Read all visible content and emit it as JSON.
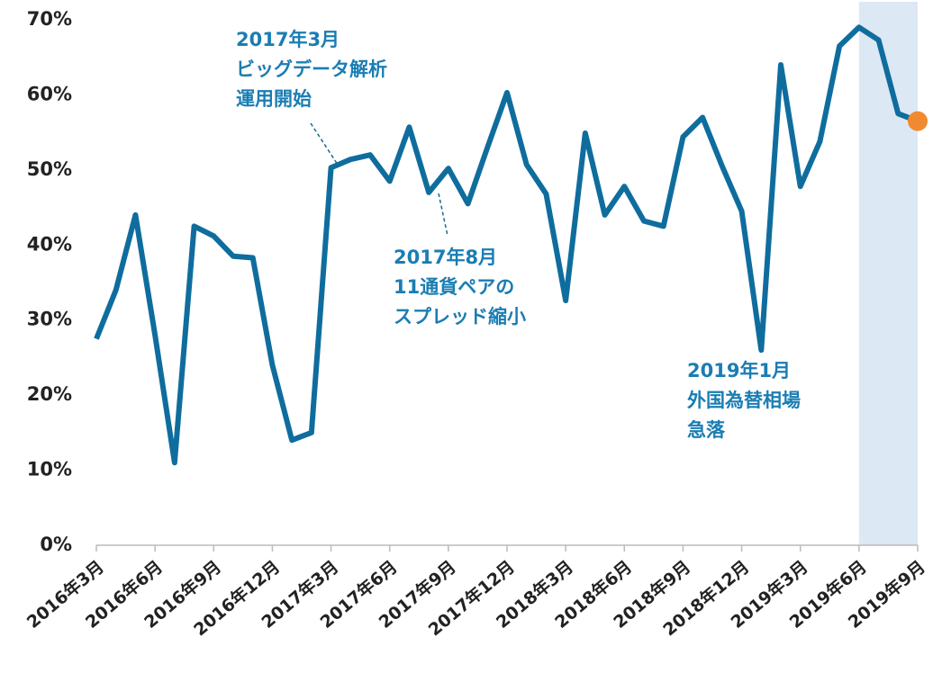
{
  "chart_data": {
    "type": "line",
    "categories": [
      "2016年3月",
      null,
      null,
      "2016年6月",
      null,
      null,
      "2016年9月",
      null,
      null,
      "2016年12月",
      null,
      null,
      "2017年3月",
      null,
      null,
      "2017年6月",
      null,
      null,
      "2017年9月",
      null,
      null,
      "2017年12月",
      null,
      null,
      "2018年3月",
      null,
      null,
      "2018年6月",
      null,
      null,
      "2018年9月",
      null,
      null,
      "2018年12月",
      null,
      null,
      "2019年3月",
      null,
      null,
      "2019年6月",
      null,
      null,
      "2019年9月"
    ],
    "series": [
      {
        "color": "#0f6d9e",
        "values": [
          27.5,
          34,
          44,
          28,
          11,
          42.5,
          41.2,
          38.5,
          38.3,
          24,
          14,
          15,
          50.3,
          51.4,
          52,
          48.5,
          55.7,
          47,
          50.2,
          45.5,
          53,
          60.3,
          50.7,
          46.8,
          32.6,
          54.9,
          44,
          47.8,
          43.2,
          42.5,
          54.4,
          57,
          50.5,
          44.5,
          26,
          64,
          47.8,
          53.8,
          66.5,
          69,
          67.3,
          57.5,
          56.5
        ]
      }
    ],
    "last_point_color": "#f08a30",
    "highlight": {
      "from": "2019年6月",
      "to": "2019年9月",
      "color": "#dde8f5"
    },
    "ylim": [
      0,
      70
    ],
    "yticks": [
      {
        "value": 0,
        "label": "0%"
      },
      {
        "value": 10,
        "label": "10%"
      },
      {
        "value": 20,
        "label": "20%"
      },
      {
        "value": 30,
        "label": "30%"
      },
      {
        "value": 40,
        "label": "40%"
      },
      {
        "value": 50,
        "label": "50%"
      },
      {
        "value": 60,
        "label": "60%"
      },
      {
        "value": 70,
        "label": "70%"
      }
    ],
    "annotations": [
      {
        "lines": [
          "2017年3月",
          "ビッグデータ解析",
          "運用開始"
        ]
      },
      {
        "lines": [
          "2017年8月",
          "11通貨ペアの",
          "スプレッド縮小"
        ]
      },
      {
        "lines": [
          "2019年1月",
          "外国為替相場",
          "急落"
        ]
      }
    ]
  }
}
